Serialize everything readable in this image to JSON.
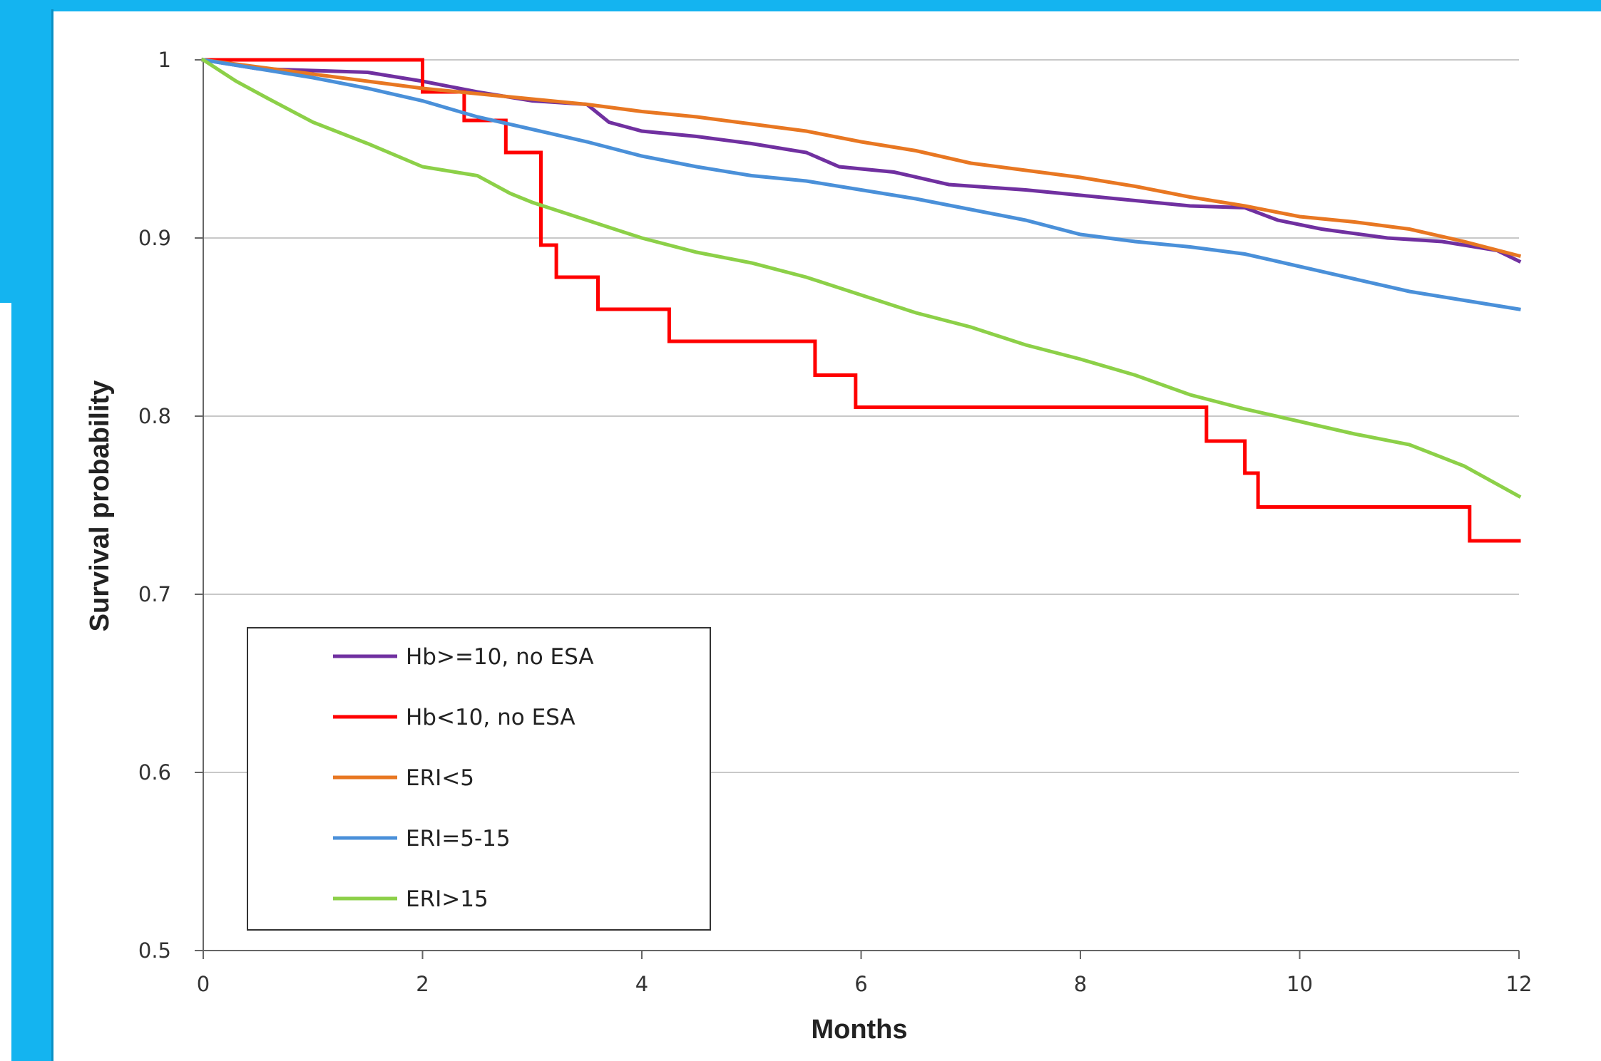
{
  "chart_data": {
    "type": "line",
    "xlabel": "Months",
    "ylabel": "Survival probability",
    "xlim": [
      0,
      12
    ],
    "ylim": [
      0.5,
      1
    ],
    "xticks": [
      "0",
      "2",
      "4",
      "6",
      "8",
      "10",
      "12"
    ],
    "yticks": [
      "0.5",
      "0.6",
      "0.7",
      "0.8",
      "0.9",
      "1"
    ],
    "grid": true,
    "legend_position": "lower-left",
    "series": [
      {
        "name": "Hb>=10, no ESA",
        "color": "#7030a0",
        "points": [
          [
            0,
            1
          ],
          [
            0.5,
            0.995
          ],
          [
            1.0,
            0.994
          ],
          [
            1.5,
            0.993
          ],
          [
            2.0,
            0.988
          ],
          [
            2.5,
            0.982
          ],
          [
            3.0,
            0.977
          ],
          [
            3.5,
            0.975
          ],
          [
            3.7,
            0.965
          ],
          [
            4.0,
            0.96
          ],
          [
            4.5,
            0.957
          ],
          [
            5.0,
            0.953
          ],
          [
            5.5,
            0.948
          ],
          [
            5.8,
            0.94
          ],
          [
            6.3,
            0.937
          ],
          [
            6.8,
            0.93
          ],
          [
            7.5,
            0.927
          ],
          [
            8.0,
            0.924
          ],
          [
            8.5,
            0.921
          ],
          [
            9.0,
            0.918
          ],
          [
            9.5,
            0.917
          ],
          [
            9.8,
            0.91
          ],
          [
            10.2,
            0.905
          ],
          [
            10.8,
            0.9
          ],
          [
            11.3,
            0.898
          ],
          [
            11.8,
            0.893
          ],
          [
            12.0,
            0.887
          ]
        ]
      },
      {
        "name": "Hb<10, no ESA",
        "color": "#ff0000",
        "step": true,
        "points": [
          [
            0,
            1
          ],
          [
            2.0,
            1
          ],
          [
            2.0,
            0.982
          ],
          [
            2.38,
            0.982
          ],
          [
            2.38,
            0.966
          ],
          [
            2.76,
            0.966
          ],
          [
            2.76,
            0.948
          ],
          [
            3.08,
            0.948
          ],
          [
            3.08,
            0.896
          ],
          [
            3.22,
            0.896
          ],
          [
            3.22,
            0.878
          ],
          [
            3.6,
            0.878
          ],
          [
            3.6,
            0.86
          ],
          [
            4.25,
            0.86
          ],
          [
            4.25,
            0.842
          ],
          [
            5.58,
            0.842
          ],
          [
            5.58,
            0.823
          ],
          [
            5.95,
            0.823
          ],
          [
            5.95,
            0.805
          ],
          [
            9.15,
            0.805
          ],
          [
            9.15,
            0.786
          ],
          [
            9.5,
            0.786
          ],
          [
            9.5,
            0.768
          ],
          [
            9.62,
            0.768
          ],
          [
            9.62,
            0.749
          ],
          [
            11.55,
            0.749
          ],
          [
            11.55,
            0.73
          ],
          [
            12.0,
            0.73
          ]
        ]
      },
      {
        "name": "ERI<5",
        "color": "#e87722",
        "points": [
          [
            0,
            1
          ],
          [
            0.5,
            0.996
          ],
          [
            1.0,
            0.992
          ],
          [
            1.5,
            0.988
          ],
          [
            2.0,
            0.984
          ],
          [
            2.5,
            0.981
          ],
          [
            3.0,
            0.978
          ],
          [
            3.5,
            0.975
          ],
          [
            4.0,
            0.971
          ],
          [
            4.5,
            0.968
          ],
          [
            5.0,
            0.964
          ],
          [
            5.5,
            0.96
          ],
          [
            6.0,
            0.954
          ],
          [
            6.5,
            0.949
          ],
          [
            7.0,
            0.942
          ],
          [
            7.5,
            0.938
          ],
          [
            8.0,
            0.934
          ],
          [
            8.5,
            0.929
          ],
          [
            9.0,
            0.923
          ],
          [
            9.5,
            0.918
          ],
          [
            10.0,
            0.912
          ],
          [
            10.5,
            0.909
          ],
          [
            11.0,
            0.905
          ],
          [
            11.5,
            0.898
          ],
          [
            12.0,
            0.89
          ]
        ]
      },
      {
        "name": "ERI=5-15",
        "color": "#4a90d9",
        "points": [
          [
            0,
            1
          ],
          [
            0.5,
            0.995
          ],
          [
            1.0,
            0.99
          ],
          [
            1.5,
            0.984
          ],
          [
            2.0,
            0.977
          ],
          [
            2.5,
            0.968
          ],
          [
            3.0,
            0.961
          ],
          [
            3.5,
            0.954
          ],
          [
            4.0,
            0.946
          ],
          [
            4.5,
            0.94
          ],
          [
            5.0,
            0.935
          ],
          [
            5.5,
            0.932
          ],
          [
            6.0,
            0.927
          ],
          [
            6.5,
            0.922
          ],
          [
            7.0,
            0.916
          ],
          [
            7.5,
            0.91
          ],
          [
            8.0,
            0.902
          ],
          [
            8.5,
            0.898
          ],
          [
            9.0,
            0.895
          ],
          [
            9.5,
            0.891
          ],
          [
            10.0,
            0.884
          ],
          [
            10.5,
            0.877
          ],
          [
            11.0,
            0.87
          ],
          [
            11.5,
            0.865
          ],
          [
            12.0,
            0.86
          ]
        ]
      },
      {
        "name": "ERI>15",
        "color": "#8cd048",
        "points": [
          [
            0,
            1
          ],
          [
            0.3,
            0.988
          ],
          [
            0.6,
            0.978
          ],
          [
            1.0,
            0.965
          ],
          [
            1.5,
            0.953
          ],
          [
            2.0,
            0.94
          ],
          [
            2.5,
            0.935
          ],
          [
            2.8,
            0.925
          ],
          [
            3.0,
            0.92
          ],
          [
            3.5,
            0.91
          ],
          [
            4.0,
            0.9
          ],
          [
            4.5,
            0.892
          ],
          [
            5.0,
            0.886
          ],
          [
            5.5,
            0.878
          ],
          [
            6.0,
            0.868
          ],
          [
            6.5,
            0.858
          ],
          [
            7.0,
            0.85
          ],
          [
            7.5,
            0.84
          ],
          [
            8.0,
            0.832
          ],
          [
            8.5,
            0.823
          ],
          [
            9.0,
            0.812
          ],
          [
            9.5,
            0.804
          ],
          [
            10.0,
            0.797
          ],
          [
            10.5,
            0.79
          ],
          [
            11.0,
            0.784
          ],
          [
            11.5,
            0.772
          ],
          [
            12.0,
            0.755
          ]
        ]
      }
    ]
  },
  "colors": {
    "background": "#14b4f0",
    "panel": "#ffffff",
    "grid": "#c8c8c8"
  }
}
